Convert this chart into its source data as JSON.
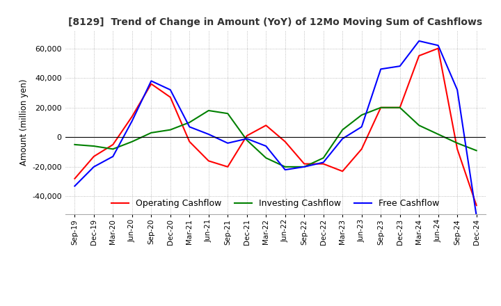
{
  "title": "[8129]  Trend of Change in Amount (YoY) of 12Mo Moving Sum of Cashflows",
  "ylabel": "Amount (million yen)",
  "ylim": [
    -52000,
    72000
  ],
  "yticks": [
    -40000,
    -20000,
    0,
    20000,
    40000,
    60000
  ],
  "labels": [
    "Sep-19",
    "Dec-19",
    "Mar-20",
    "Jun-20",
    "Sep-20",
    "Dec-20",
    "Mar-21",
    "Jun-21",
    "Sep-21",
    "Dec-21",
    "Mar-22",
    "Jun-22",
    "Sep-22",
    "Dec-22",
    "Mar-23",
    "Jun-23",
    "Sep-23",
    "Dec-23",
    "Mar-24",
    "Jun-24",
    "Sep-24",
    "Dec-24"
  ],
  "operating": [
    -28000,
    -13000,
    -5000,
    14000,
    36000,
    27000,
    -3000,
    -16000,
    -20000,
    1000,
    8000,
    -3000,
    -18000,
    -18000,
    -23000,
    -8000,
    20000,
    20000,
    55000,
    60000,
    -8000,
    -46000
  ],
  "investing": [
    -5000,
    -6000,
    -8000,
    -3000,
    3000,
    5000,
    10000,
    18000,
    16000,
    -2000,
    -14000,
    -20000,
    -20000,
    -14000,
    5000,
    15000,
    20000,
    20000,
    8000,
    2000,
    -4000,
    -9000
  ],
  "free": [
    -33000,
    -20000,
    -13000,
    11000,
    38000,
    32000,
    7000,
    2000,
    -4000,
    -1000,
    -6000,
    -22000,
    -20000,
    -17000,
    -1000,
    7000,
    46000,
    48000,
    65000,
    62000,
    32000,
    -53000
  ],
  "colors": {
    "operating": "#ff0000",
    "investing": "#008000",
    "free": "#0000ff"
  },
  "legend_labels": [
    "Operating Cashflow",
    "Investing Cashflow",
    "Free Cashflow"
  ],
  "background": "#ffffff",
  "grid_color": "#aaaaaa"
}
